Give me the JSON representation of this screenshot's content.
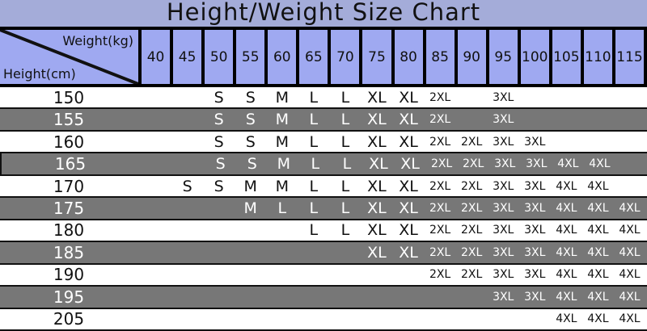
{
  "chart_data": {
    "type": "table",
    "title": "Height/Weight Size Chart",
    "column_header_label": "Weight(kg)",
    "row_header_label": "Height(cm)",
    "columns": [
      "40",
      "45",
      "50",
      "55",
      "60",
      "65",
      "70",
      "75",
      "80",
      "85",
      "90",
      "95",
      "100",
      "105",
      "110",
      "115"
    ],
    "rows": [
      {
        "height": "150",
        "sizes": [
          "",
          "",
          "S",
          "S",
          "M",
          "L",
          "L",
          "XL",
          "XL",
          "2XL",
          "",
          "3XL",
          "",
          "",
          "",
          ""
        ]
      },
      {
        "height": "155",
        "sizes": [
          "",
          "",
          "S",
          "S",
          "M",
          "L",
          "L",
          "XL",
          "XL",
          "2XL",
          "",
          "3XL",
          "",
          "",
          "",
          ""
        ]
      },
      {
        "height": "160",
        "sizes": [
          "",
          "",
          "S",
          "S",
          "M",
          "L",
          "L",
          "XL",
          "XL",
          "2XL",
          "2XL",
          "3XL",
          "3XL",
          "",
          "",
          ""
        ]
      },
      {
        "height": "165",
        "sizes": [
          "",
          "",
          "S",
          "S",
          "M",
          "L",
          "L",
          "XL",
          "XL",
          "2XL",
          "2XL",
          "3XL",
          "3XL",
          "4XL",
          "4XL",
          ""
        ]
      },
      {
        "height": "170",
        "sizes": [
          "",
          "S",
          "S",
          "M",
          "M",
          "L",
          "L",
          "XL",
          "XL",
          "2XL",
          "2XL",
          "3XL",
          "3XL",
          "4XL",
          "4XL",
          ""
        ]
      },
      {
        "height": "175",
        "sizes": [
          "",
          "",
          "",
          "M",
          "L",
          "L",
          "L",
          "XL",
          "XL",
          "2XL",
          "2XL",
          "3XL",
          "3XL",
          "4XL",
          "4XL",
          "4XL"
        ]
      },
      {
        "height": "180",
        "sizes": [
          "",
          "",
          "",
          "",
          "",
          "L",
          "L",
          "XL",
          "XL",
          "2XL",
          "2XL",
          "3XL",
          "3XL",
          "4XL",
          "4XL",
          "4XL"
        ]
      },
      {
        "height": "185",
        "sizes": [
          "",
          "",
          "",
          "",
          "",
          "",
          "",
          "XL",
          "XL",
          "2XL",
          "2XL",
          "3XL",
          "3XL",
          "4XL",
          "4XL",
          "4XL"
        ]
      },
      {
        "height": "190",
        "sizes": [
          "",
          "",
          "",
          "",
          "",
          "",
          "",
          "",
          "",
          "2XL",
          "2XL",
          "3XL",
          "3XL",
          "4XL",
          "4XL",
          "4XL"
        ]
      },
      {
        "height": "195",
        "sizes": [
          "",
          "",
          "",
          "",
          "",
          "",
          "",
          "",
          "",
          "",
          "",
          "3XL",
          "3XL",
          "4XL",
          "4XL",
          "4XL"
        ]
      },
      {
        "height": "205",
        "sizes": [
          "",
          "",
          "",
          "",
          "",
          "",
          "",
          "",
          "",
          "",
          "",
          "",
          "",
          "4XL",
          "4XL",
          "4XL"
        ]
      }
    ],
    "colors": {
      "title_bg": "#a4acd9",
      "header_bg": "#9fa9f1",
      "row_gray": "#777777",
      "row_white": "#ffffff",
      "border": "#111111"
    }
  }
}
